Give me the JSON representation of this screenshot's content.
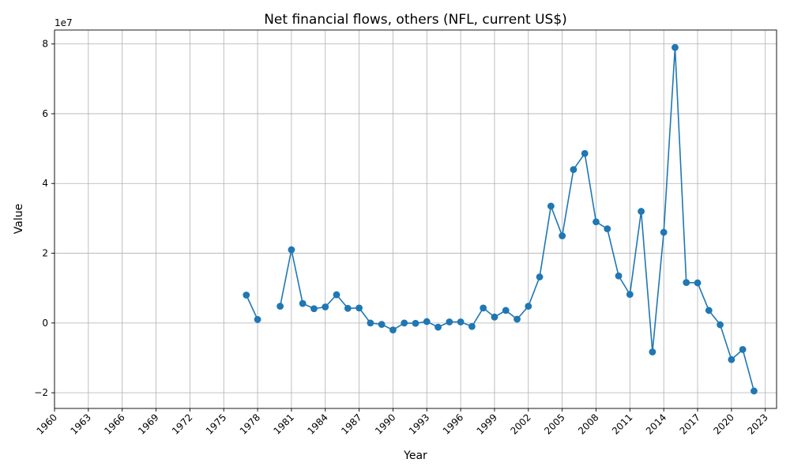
{
  "chart_data": {
    "type": "line",
    "title": "Net financial flows, others (NFL, current US$)",
    "xlabel": "Year",
    "ylabel": "Value",
    "offset_text": "1e7",
    "xlim": [
      1960,
      2024
    ],
    "ylim": [
      -24500000,
      84000000
    ],
    "x_ticks": [
      1960,
      1963,
      1966,
      1969,
      1972,
      1975,
      1978,
      1981,
      1984,
      1987,
      1990,
      1993,
      1996,
      1999,
      2002,
      2005,
      2008,
      2011,
      2014,
      2017,
      2020,
      2023
    ],
    "y_ticks": [
      -20000000,
      0,
      20000000,
      40000000,
      60000000,
      80000000
    ],
    "y_tick_labels": [
      "−2",
      "0",
      "2",
      "4",
      "6",
      "8"
    ],
    "grid": true,
    "line_color": "#1f77b4",
    "segments": [
      {
        "x": [
          1977,
          1978
        ],
        "y": [
          8000000,
          1000000
        ]
      },
      {
        "x": [
          1980,
          1981,
          1982,
          1983,
          1984,
          1985,
          1986,
          1987,
          1988,
          1989,
          1990,
          1991,
          1992,
          1993,
          1994,
          1995,
          1996,
          1997,
          1998,
          1999,
          2000,
          2001,
          2002,
          2003,
          2004,
          2005,
          2006,
          2007,
          2008,
          2009,
          2010,
          2011,
          2012,
          2013,
          2014,
          2015,
          2016,
          2017,
          2018,
          2019,
          2020,
          2021,
          2022
        ],
        "y": [
          4800000,
          21000000,
          5600000,
          4100000,
          4600000,
          8100000,
          4200000,
          4300000,
          0,
          -400000,
          -2000000,
          0,
          -100000,
          400000,
          -1200000,
          300000,
          300000,
          -1000000,
          4300000,
          1700000,
          3600000,
          1100000,
          4800000,
          13200000,
          33500000,
          25000000,
          44000000,
          48600000,
          29000000,
          27000000,
          13500000,
          8200000,
          32000000,
          -8300000,
          26000000,
          79000000,
          11600000,
          11500000,
          3600000,
          -500000,
          -10500000,
          -7600000,
          -19500000
        ]
      }
    ]
  }
}
